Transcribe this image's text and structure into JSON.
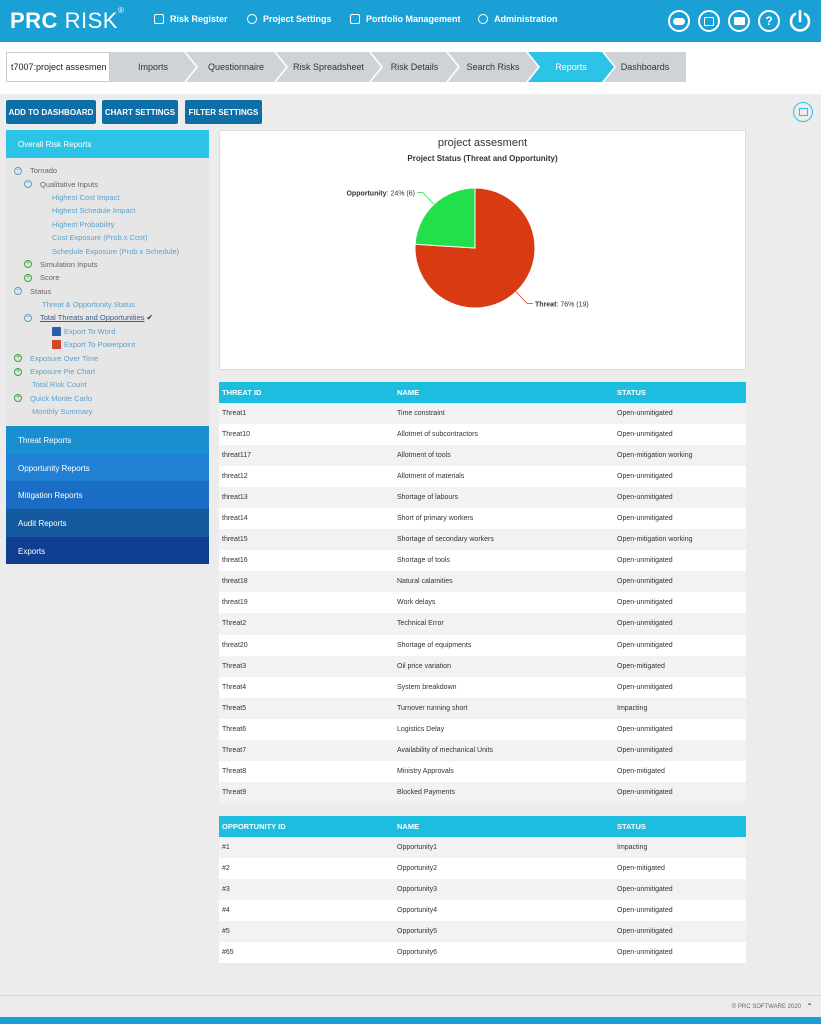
{
  "brand": {
    "bold": "PRC",
    "thin": "RISK",
    "mark": "®"
  },
  "topnav": [
    {
      "label": "Risk Register",
      "icon": "register-icon"
    },
    {
      "label": "Project Settings",
      "icon": "settings-icon"
    },
    {
      "label": "Portfolio Management",
      "icon": "folder-icon"
    },
    {
      "label": "Administration",
      "icon": "user-icon"
    }
  ],
  "top_icons": [
    "toggle-icon",
    "calendar-icon",
    "mail-icon",
    "help-icon",
    "power-icon"
  ],
  "help_glyph": "?",
  "breadcrumb": {
    "project": "t7007:project assesmen",
    "steps": [
      "Imports",
      "Questionnaire",
      "Risk Spreadsheet",
      "Risk Details",
      "Search Risks",
      "Reports",
      "Dashboards"
    ],
    "active": "Reports"
  },
  "actions": [
    "ADD TO DASHBOARD",
    "CHART SETTINGS",
    "FILTER SETTINGS"
  ],
  "sidebar": {
    "header": "Overall Risk Reports",
    "tree": [
      {
        "label": "Tornado",
        "toggle": "minus",
        "indent": 0,
        "dark": true
      },
      {
        "label": "Qualitative Inputs",
        "toggle": "minus",
        "indent": 1,
        "dark": true
      },
      {
        "label": "Highest Cost Impact",
        "indent": 2
      },
      {
        "label": "Highest Schedule Impact",
        "indent": 2
      },
      {
        "label": "Highest Probability",
        "indent": 2
      },
      {
        "label": "Cost Exposure (Prob.x Cost)",
        "indent": 2
      },
      {
        "label": "Schedule Exposure (Prob.x Schedule)",
        "indent": 2
      },
      {
        "label": "Simulation Inputs",
        "toggle": "plus",
        "indent": 1,
        "dark": true
      },
      {
        "label": "Score",
        "toggle": "plus",
        "indent": 1,
        "dark": true
      },
      {
        "label": "Status",
        "toggle": "minus",
        "indent": 0,
        "dark": true
      },
      {
        "label": "Threat & Opportunity Status",
        "indent": 1
      },
      {
        "label": "Total Threats and Opportunities",
        "toggle": "minus",
        "indent": 1,
        "selected": true,
        "check": "✔"
      },
      {
        "label": "Export To Word",
        "indent": 2,
        "doc": "word"
      },
      {
        "label": "Export To Powerpoint",
        "indent": 2,
        "doc": "ppt"
      },
      {
        "label": "Exposure Over Time",
        "toggle": "plus",
        "indent": 0
      },
      {
        "label": "Exposure Pie Chart",
        "toggle": "plus",
        "indent": 0
      },
      {
        "label": "Total Risk Count",
        "indent": 0
      },
      {
        "label": "Quick Monte Carlo",
        "toggle": "plus",
        "indent": 0
      },
      {
        "label": "Monthly Summary",
        "indent": 0
      }
    ],
    "sections": [
      {
        "label": "Threat Reports",
        "color": "#1a8fd0"
      },
      {
        "label": "Opportunity Reports",
        "color": "#1f80d4"
      },
      {
        "label": "Mitigation Reports",
        "color": "#1b6cc4"
      },
      {
        "label": "Audit Reports",
        "color": "#155a9e"
      },
      {
        "label": "Exports",
        "color": "#0e3f92"
      }
    ]
  },
  "chart_data": {
    "type": "pie",
    "title": "project assesment",
    "subtitle": "Project Status (Threat and Opportunity)",
    "slices": [
      {
        "name": "Threat",
        "value": 19,
        "percent": 76,
        "color": "#d83b12",
        "label_pct": "76%",
        "label_count": "(19)"
      },
      {
        "name": "Opportunity",
        "value": 6,
        "percent": 24,
        "color": "#21e04a",
        "label_pct": "24%",
        "label_count": "(6)"
      }
    ]
  },
  "threats": {
    "headers": [
      "THREAT ID",
      "NAME",
      "STATUS"
    ],
    "rows": [
      [
        "Threat1",
        "Time constraint",
        "Open-unmitigated"
      ],
      [
        "Threat10",
        "Allotmet of subcontractors",
        "Open-unmitigated"
      ],
      [
        "threat117",
        "Allotment of tools",
        "Open-mitigation working"
      ],
      [
        "threat12",
        "Allotment of materials",
        "Open-unmitigated"
      ],
      [
        "threat13",
        "Shortage of labours",
        "Open-unmitigated"
      ],
      [
        "threat14",
        "Short of primary workers",
        "Open-unmitigated"
      ],
      [
        "threat15",
        "Shortage of secondary workers",
        "Open-mitigation working"
      ],
      [
        "threat16",
        "Shortage of tools",
        "Open-unmitigated"
      ],
      [
        "threat18",
        "Natural calamities",
        "Open-unmitigated"
      ],
      [
        "threat19",
        "Work delays",
        "Open-unmitigated"
      ],
      [
        "Threat2",
        "Technical Error",
        "Open-unmitigated"
      ],
      [
        "threat20",
        "Shortage of equipments",
        "Open-unmitigated"
      ],
      [
        "Threat3",
        "Oil price variation",
        "Open-mitigated"
      ],
      [
        "Threat4",
        "System breakdown",
        "Open-unmitigated"
      ],
      [
        "Threat5",
        "Turnover running short",
        "Impacting"
      ],
      [
        "Threat6",
        "Logistics Delay",
        "Open-unmitigated"
      ],
      [
        "Threat7",
        "Availability of mechanical Units",
        "Open-unmitigated"
      ],
      [
        "Threat8",
        "Ministry Approvals",
        "Open-mitigated"
      ],
      [
        "Threat9",
        "Blocked Payments",
        "Open-unmitigated"
      ]
    ]
  },
  "opportunities": {
    "headers": [
      "OPPORTUNITY ID",
      "NAME",
      "STATUS"
    ],
    "rows": [
      [
        "#1",
        "Opportunity1",
        "Impacting"
      ],
      [
        "#2",
        "Opportunity2",
        "Open-mitigated"
      ],
      [
        "#3",
        "Opportunity3",
        "Open-unmitigated"
      ],
      [
        "#4",
        "Opportunity4",
        "Open-unmitigated"
      ],
      [
        "#5",
        "Opportunity5",
        "Open-unmitigated"
      ],
      [
        "#65",
        "Opportunity6",
        "Open-unmitigated"
      ]
    ]
  },
  "footer": {
    "copyright": "© PRC SOFTWARE 2020",
    "up_glyph": "⌃"
  }
}
